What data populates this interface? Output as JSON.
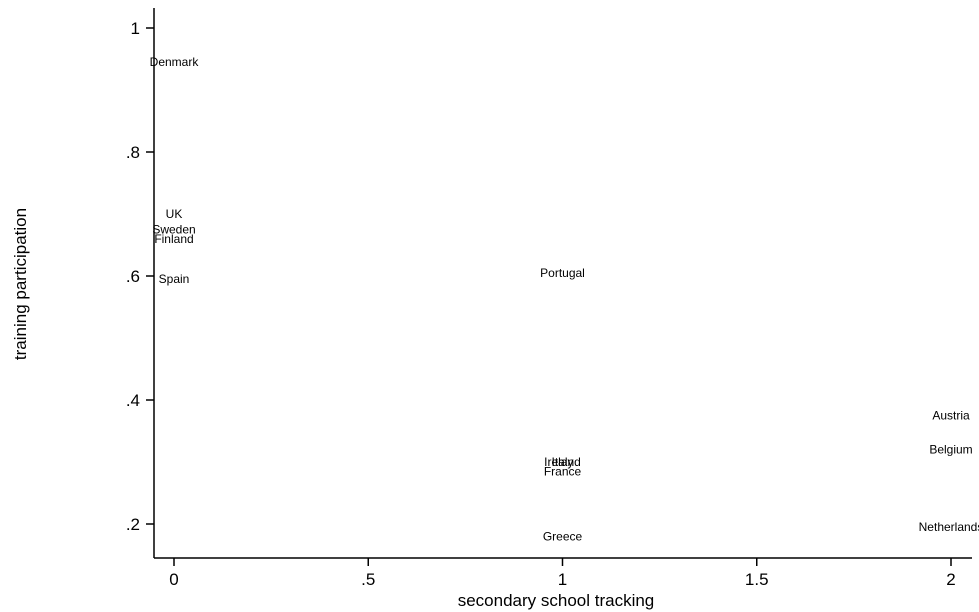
{
  "chart_data": {
    "type": "scatter",
    "title": "",
    "xlabel": "secondary school tracking",
    "ylabel": "training participation",
    "xlim": [
      -0.05,
      2.05
    ],
    "ylim": [
      0.15,
      1.03
    ],
    "xticks": [
      {
        "value": 0,
        "label": "0"
      },
      {
        "value": 0.5,
        "label": ".5"
      },
      {
        "value": 1,
        "label": "1"
      },
      {
        "value": 1.5,
        "label": "1.5"
      },
      {
        "value": 2,
        "label": "2"
      }
    ],
    "yticks": [
      {
        "value": 0.2,
        "label": ".2"
      },
      {
        "value": 0.4,
        "label": ".4"
      },
      {
        "value": 0.6,
        "label": ".6"
      },
      {
        "value": 0.8,
        "label": ".8"
      },
      {
        "value": 1,
        "label": "1"
      }
    ],
    "grid": false,
    "marker": "label",
    "points": [
      {
        "label": "Denmark",
        "x": 0,
        "y": 0.945
      },
      {
        "label": "UK",
        "x": 0,
        "y": 0.7
      },
      {
        "label": "Sweden",
        "x": 0,
        "y": 0.675
      },
      {
        "label": "Finland",
        "x": 0,
        "y": 0.66
      },
      {
        "label": "Spain",
        "x": 0,
        "y": 0.595
      },
      {
        "label": "Portugal",
        "x": 1,
        "y": 0.605
      },
      {
        "label": "Ireland",
        "x": 1,
        "y": 0.3
      },
      {
        "label": "Italy",
        "x": 1,
        "y": 0.3
      },
      {
        "label": "France",
        "x": 1,
        "y": 0.285
      },
      {
        "label": "Greece",
        "x": 1,
        "y": 0.18
      },
      {
        "label": "Austria",
        "x": 2,
        "y": 0.375
      },
      {
        "label": "Belgium",
        "x": 2,
        "y": 0.32
      },
      {
        "label": "Netherlands",
        "x": 2,
        "y": 0.195
      }
    ]
  }
}
